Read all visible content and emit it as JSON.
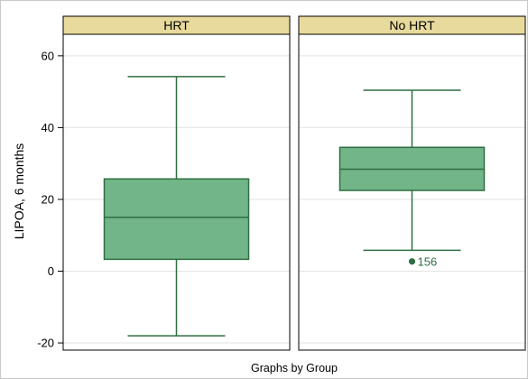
{
  "chart_data": {
    "type": "boxplot",
    "ylabel": "LIPOA, 6 months",
    "footer": "Graphs by Group",
    "ylim": [
      -22,
      66
    ],
    "yticks": [
      -20,
      0,
      20,
      40,
      60
    ],
    "grid": true,
    "colors": {
      "box_fill": "#72b589",
      "box_stroke": "#2e6e41",
      "header_fill": "#e8da9c",
      "gridline": "#e2e2e2",
      "outlier_label": "#2e6e41"
    },
    "panels": [
      {
        "label": "HRT",
        "whisker_low": -18,
        "q1": 3.3,
        "median": 15,
        "q3": 25.7,
        "whisker_high": 54.2,
        "outliers": []
      },
      {
        "label": "No HRT",
        "whisker_low": 5.8,
        "q1": 22.5,
        "median": 28.4,
        "q3": 34.5,
        "whisker_high": 50.4,
        "outliers": [
          {
            "value": 2.7,
            "label": "156"
          }
        ]
      }
    ]
  }
}
